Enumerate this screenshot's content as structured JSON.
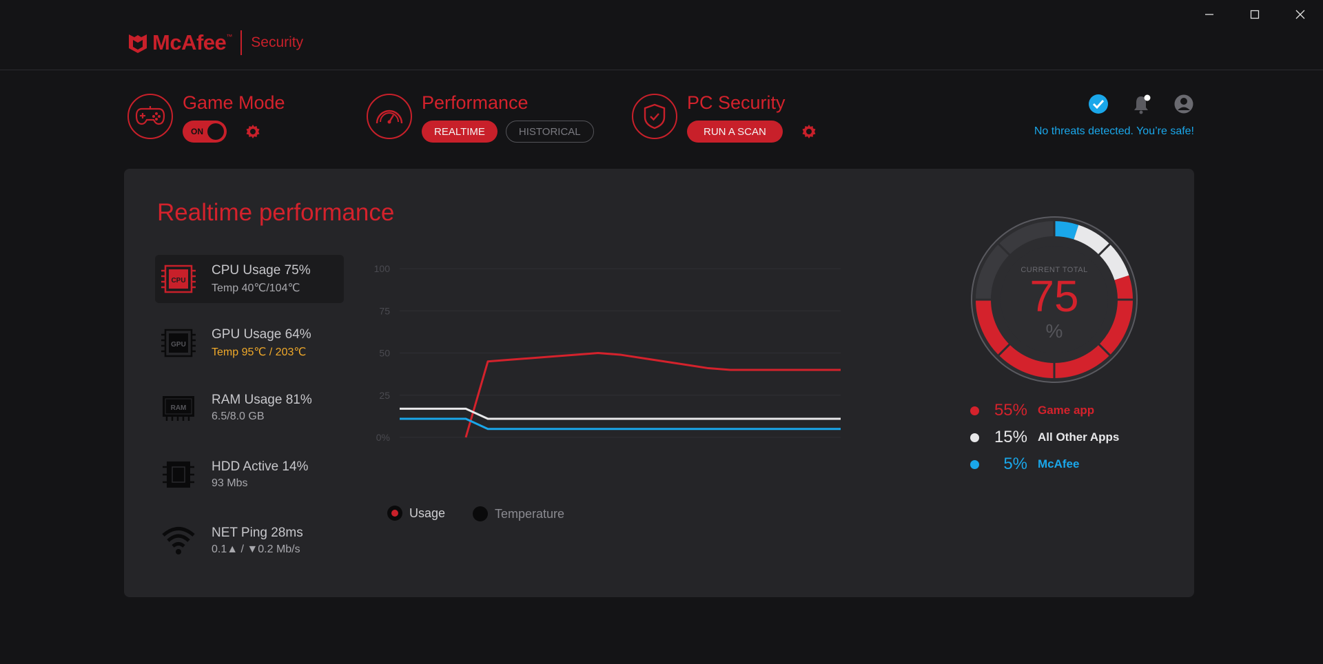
{
  "app": {
    "brand": "McAfee",
    "trademark": "™",
    "product": "Security"
  },
  "header": {
    "game_mode": {
      "title": "Game Mode",
      "toggle_label": "ON"
    },
    "performance": {
      "title": "Performance",
      "tab_realtime": "REALTIME",
      "tab_historical": "HISTORICAL"
    },
    "pc_security": {
      "title": "PC Security",
      "scan_button": "RUN A SCAN"
    },
    "status_text": "No threats detected. You’re safe!"
  },
  "panel": {
    "title": "Realtime performance",
    "metrics": [
      {
        "title": "CPU Usage 75%",
        "sub": "Temp 40℃/104℃",
        "icon": "cpu-icon",
        "chip": "CPU"
      },
      {
        "title": "GPU Usage 64%",
        "sub": "Temp 95℃ / 203℃",
        "icon": "gpu-icon",
        "chip": "GPU"
      },
      {
        "title": "RAM Usage 81%",
        "sub": "6.5/8.0 GB",
        "icon": "ram-icon",
        "chip": "RAM"
      },
      {
        "title": "HDD Active 14%",
        "sub": "93 Mbs",
        "icon": "hdd-icon"
      },
      {
        "title": "NET Ping 28ms",
        "sub": "0.1▲ / ▼0.2 Mb/s",
        "icon": "wifi-icon"
      }
    ],
    "legend": {
      "usage": "Usage",
      "temperature": "Temperature"
    },
    "donut": {
      "label": "CURRENT TOTAL",
      "value": "75",
      "unit": "%"
    },
    "breakdown": [
      {
        "pct": "55%",
        "name": "Game app",
        "color": "#d4222c"
      },
      {
        "pct": "15%",
        "name": "All Other Apps",
        "color": "#e8e8ea"
      },
      {
        "pct": "5%",
        "name": "McAfee",
        "color": "#1aa7ea"
      }
    ]
  },
  "colors": {
    "accent": "#c8202a",
    "info": "#1aa7ea",
    "warn": "#f0a92a",
    "panel_bg": "#252528",
    "app_bg": "#141416"
  },
  "chart_data": {
    "type": "line",
    "ylim": [
      0,
      100
    ],
    "yticks": [
      "100",
      "75",
      "50",
      "25",
      "0%"
    ],
    "ytick_values": [
      100,
      75,
      50,
      25,
      0
    ],
    "x": [
      0,
      1,
      2,
      3,
      4,
      5,
      6,
      7,
      8,
      9,
      10,
      11,
      12,
      13,
      14,
      15,
      16,
      17,
      18,
      19,
      20
    ],
    "series": [
      {
        "name": "CPU",
        "color": "#d4222c",
        "values": [
          null,
          null,
          null,
          0,
          45,
          46,
          47,
          48,
          49,
          50,
          49,
          47,
          45,
          43,
          41,
          40,
          40,
          40,
          40,
          40,
          40
        ]
      },
      {
        "name": "RAM",
        "color": "#e8e8ea",
        "values": [
          17,
          17,
          17,
          17,
          11,
          11,
          11,
          11,
          11,
          11,
          11,
          11,
          11,
          11,
          11,
          11,
          11,
          11,
          11,
          11,
          11
        ]
      },
      {
        "name": "McAfee",
        "color": "#1aa7ea",
        "values": [
          11,
          11,
          11,
          11,
          5,
          5,
          5,
          5,
          5,
          5,
          5,
          5,
          5,
          5,
          5,
          5,
          5,
          5,
          5,
          5,
          5
        ]
      }
    ],
    "grid": true,
    "legend": [
      "Usage",
      "Temperature"
    ]
  },
  "donut_data": {
    "segments": [
      {
        "name": "McAfee",
        "value": 5,
        "color": "#1aa7ea"
      },
      {
        "name": "All Other Apps",
        "value": 15,
        "color": "#e8e8ea"
      },
      {
        "name": "Game app",
        "value": 55,
        "color": "#d4222c"
      }
    ],
    "total": 75
  }
}
